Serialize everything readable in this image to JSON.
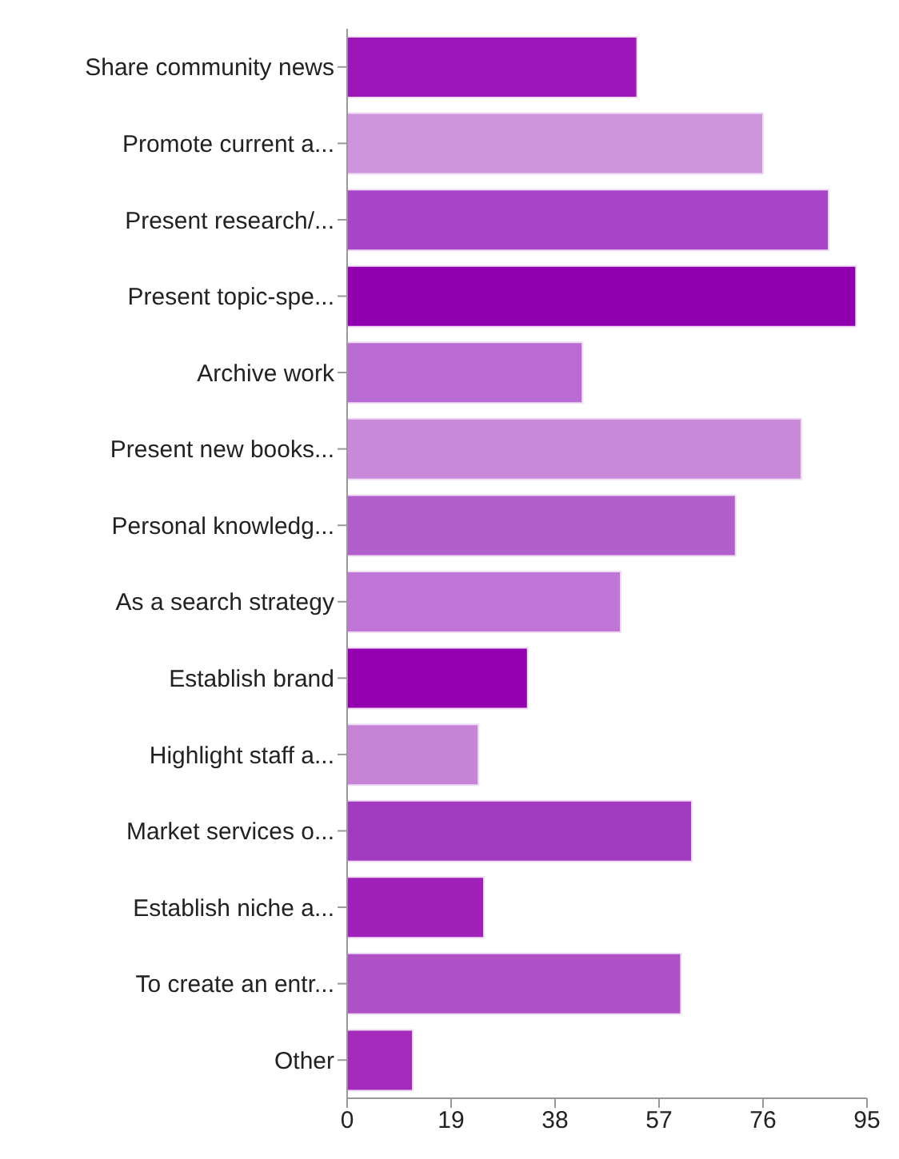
{
  "chart_data": {
    "type": "bar",
    "orientation": "horizontal",
    "categories": [
      "Share community news",
      "Promote current a...",
      "Present research/...",
      "Present topic-spe...",
      "Archive work",
      "Present new books...",
      "Personal knowledg...",
      "As a search strategy",
      "Establish brand",
      "Highlight staff a...",
      "Market services o...",
      "Establish niche a...",
      "To create an entr...",
      "Other"
    ],
    "values": [
      53,
      76,
      88,
      93,
      43,
      83,
      71,
      50,
      33,
      24,
      63,
      25,
      61,
      12
    ],
    "colors": [
      "#9c16ba",
      "#cf94de",
      "#a945c8",
      "#9100ae",
      "#bb6cd4",
      "#c88ad9",
      "#b35fcb",
      "#c076d6",
      "#9400b0",
      "#c784d6",
      "#a23bbf",
      "#a020ba",
      "#ae50c6",
      "#a42abc"
    ],
    "xlim": [
      0,
      95
    ],
    "xticks": [
      0,
      19,
      38,
      57,
      76,
      95
    ],
    "grid": false,
    "legend": false
  }
}
